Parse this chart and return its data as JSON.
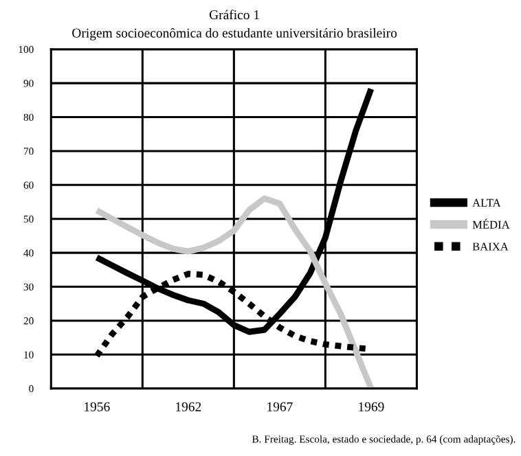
{
  "chart_data": {
    "type": "line",
    "title": "Gráfico 1",
    "subtitle": "Origem socioeconômica do estudante universitário brasileiro",
    "annotations": [
      "B. Freitag. Escola, estado e sociedade, p. 64 (com adaptações)."
    ],
    "categories": [
      "1956",
      null,
      null,
      null,
      null,
      null,
      "1962",
      null,
      null,
      null,
      null,
      null,
      "1967",
      null,
      null,
      null,
      null,
      null,
      "1969"
    ],
    "ylim": [
      0,
      100
    ],
    "yticks": [
      0,
      10,
      20,
      30,
      40,
      50,
      60,
      70,
      80,
      90,
      100
    ],
    "grid": true,
    "legend": "right",
    "series": [
      {
        "name": "ALTA",
        "color": "#000000",
        "line_style": "solid",
        "values": [
          38.6,
          36.3,
          34,
          31.8,
          29.5,
          27.6,
          26,
          25,
          22.5,
          18.7,
          16.7,
          17.3,
          22,
          27,
          34,
          44.5,
          61,
          76,
          88.3
        ]
      },
      {
        "name": "MÉDIA",
        "color": "#c8c8c8",
        "line_style": "solid",
        "values": [
          52.5,
          50,
          47.6,
          45.2,
          43,
          41.2,
          40.4,
          41.5,
          43.5,
          46.5,
          52.6,
          56,
          54.5,
          47,
          40.5,
          31,
          22,
          11,
          0
        ]
      },
      {
        "name": "BAIXA",
        "color": "#000000",
        "line_style": "dotted",
        "values": [
          9.6,
          16,
          21,
          27,
          29.6,
          32,
          33.8,
          33.5,
          31.5,
          28.5,
          25,
          21.3,
          18,
          15.5,
          14,
          13,
          12.5,
          12,
          11.6
        ]
      }
    ]
  }
}
